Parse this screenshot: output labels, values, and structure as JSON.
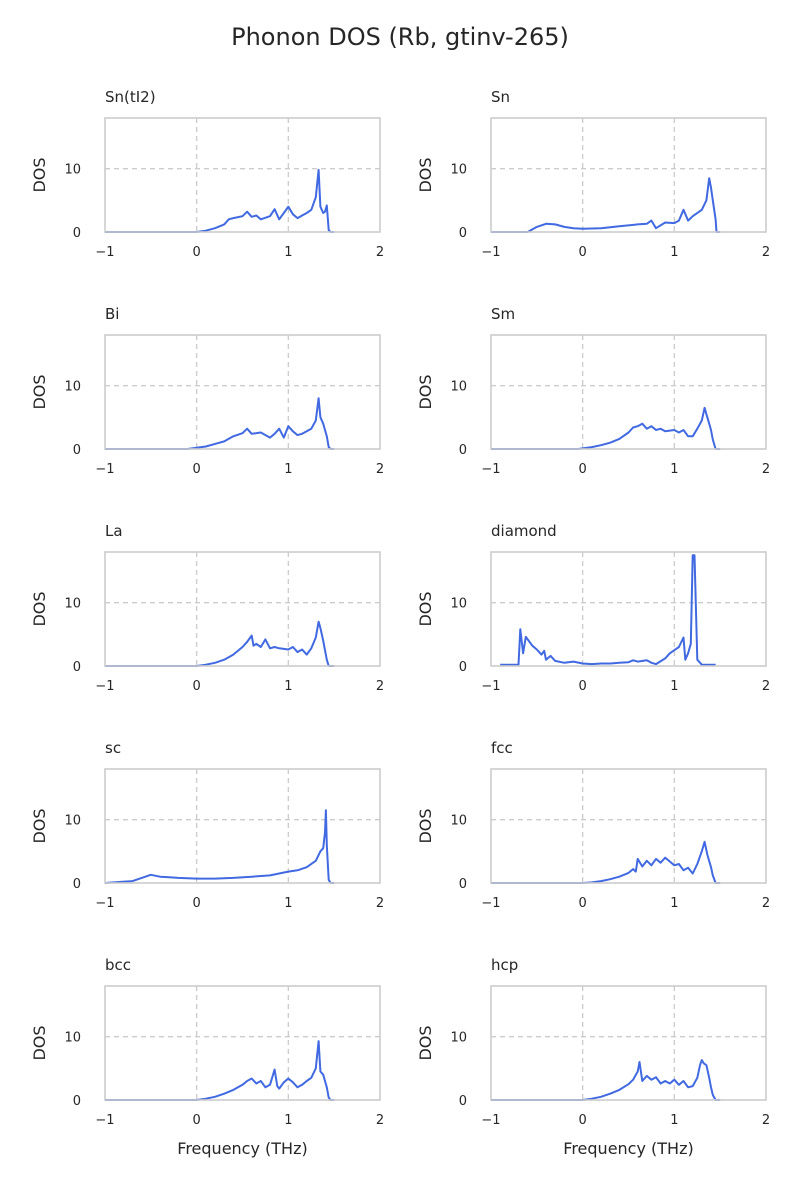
{
  "figure": {
    "title": "Phonon DOS (Rb, gtinv-265)"
  },
  "colors": {
    "line": "#4169e1",
    "axes": "#cccccc",
    "grid": "#cccccc",
    "text": "#262626"
  },
  "chart_data": [
    {
      "type": "line",
      "title": "Sn(tI2)",
      "xlabel": "",
      "ylabel": "DOS",
      "xlim": [
        -1,
        2
      ],
      "ylim": [
        0,
        18
      ],
      "xticks": [
        -1,
        0,
        1,
        2
      ],
      "yticks": [
        0,
        10
      ],
      "grid": "dashed",
      "x": [
        -1.0,
        0.0,
        0.1,
        0.2,
        0.3,
        0.35,
        0.4,
        0.5,
        0.55,
        0.6,
        0.65,
        0.7,
        0.8,
        0.85,
        0.9,
        0.95,
        1.0,
        1.05,
        1.1,
        1.15,
        1.2,
        1.25,
        1.3,
        1.33,
        1.35,
        1.38,
        1.4,
        1.42,
        1.44,
        1.46,
        1.5
      ],
      "y": [
        0,
        0,
        0.2,
        0.6,
        1.2,
        2.0,
        2.2,
        2.5,
        3.2,
        2.4,
        2.6,
        2.0,
        2.5,
        3.6,
        2.0,
        3.0,
        4.0,
        2.8,
        2.2,
        2.6,
        3.0,
        3.5,
        5.5,
        9.8,
        4.0,
        3.0,
        3.2,
        4.2,
        0.3,
        0,
        0
      ]
    },
    {
      "type": "line",
      "title": "Sn",
      "xlabel": "",
      "ylabel": "DOS",
      "xlim": [
        -1,
        2
      ],
      "ylim": [
        0,
        18
      ],
      "xticks": [
        -1,
        0,
        1,
        2
      ],
      "yticks": [
        0,
        10
      ],
      "grid": "dashed",
      "x": [
        -1.0,
        -0.6,
        -0.5,
        -0.4,
        -0.3,
        -0.2,
        -0.1,
        0.0,
        0.2,
        0.4,
        0.6,
        0.7,
        0.75,
        0.8,
        0.9,
        1.0,
        1.05,
        1.1,
        1.15,
        1.2,
        1.3,
        1.35,
        1.38,
        1.4,
        1.42,
        1.45,
        1.46,
        1.5
      ],
      "y": [
        0,
        0,
        0.8,
        1.3,
        1.2,
        0.8,
        0.6,
        0.5,
        0.6,
        0.9,
        1.2,
        1.3,
        1.8,
        0.6,
        1.5,
        1.4,
        1.8,
        3.5,
        1.8,
        2.5,
        3.5,
        5.0,
        8.5,
        7.0,
        5.0,
        2.0,
        0,
        0
      ]
    },
    {
      "type": "line",
      "title": "Bi",
      "xlabel": "",
      "ylabel": "DOS",
      "xlim": [
        -1,
        2
      ],
      "ylim": [
        0,
        18
      ],
      "xticks": [
        -1,
        0,
        1,
        2
      ],
      "yticks": [
        0,
        10
      ],
      "grid": "dashed",
      "x": [
        -1.0,
        -0.1,
        0.0,
        0.1,
        0.2,
        0.3,
        0.4,
        0.5,
        0.55,
        0.6,
        0.7,
        0.8,
        0.85,
        0.9,
        0.95,
        1.0,
        1.05,
        1.1,
        1.15,
        1.2,
        1.25,
        1.3,
        1.33,
        1.35,
        1.38,
        1.4,
        1.42,
        1.44,
        1.46,
        1.5
      ],
      "y": [
        0,
        0,
        0.2,
        0.4,
        0.8,
        1.2,
        2.0,
        2.5,
        3.2,
        2.4,
        2.6,
        1.8,
        2.4,
        3.2,
        1.8,
        3.6,
        2.8,
        2.2,
        2.4,
        2.8,
        3.2,
        4.5,
        8.0,
        5.0,
        4.0,
        3.0,
        2.0,
        0.3,
        0,
        0
      ]
    },
    {
      "type": "line",
      "title": "Sm",
      "xlabel": "",
      "ylabel": "DOS",
      "xlim": [
        -1,
        2
      ],
      "ylim": [
        0,
        18
      ],
      "xticks": [
        -1,
        0,
        1,
        2
      ],
      "yticks": [
        0,
        10
      ],
      "grid": "dashed",
      "x": [
        -1.0,
        -0.05,
        0.0,
        0.1,
        0.2,
        0.3,
        0.4,
        0.5,
        0.55,
        0.6,
        0.65,
        0.7,
        0.75,
        0.8,
        0.85,
        0.9,
        1.0,
        1.05,
        1.1,
        1.15,
        1.2,
        1.25,
        1.3,
        1.33,
        1.35,
        1.38,
        1.4,
        1.42,
        1.45,
        1.5
      ],
      "y": [
        0,
        0,
        0.1,
        0.3,
        0.6,
        1.0,
        1.6,
        2.6,
        3.4,
        3.6,
        4.0,
        3.2,
        3.6,
        3.0,
        3.2,
        2.8,
        3.0,
        2.6,
        3.0,
        2.0,
        2.0,
        3.2,
        4.5,
        6.5,
        5.5,
        4.0,
        3.0,
        1.5,
        0,
        0
      ]
    },
    {
      "type": "line",
      "title": "La",
      "xlabel": "",
      "ylabel": "DOS",
      "xlim": [
        -1,
        2
      ],
      "ylim": [
        0,
        18
      ],
      "xticks": [
        -1,
        0,
        1,
        2
      ],
      "yticks": [
        0,
        10
      ],
      "grid": "dashed",
      "x": [
        -1.0,
        0.0,
        0.1,
        0.2,
        0.3,
        0.4,
        0.5,
        0.55,
        0.6,
        0.62,
        0.65,
        0.7,
        0.75,
        0.8,
        0.85,
        0.9,
        1.0,
        1.05,
        1.1,
        1.15,
        1.2,
        1.25,
        1.3,
        1.33,
        1.35,
        1.38,
        1.4,
        1.42,
        1.44,
        1.5
      ],
      "y": [
        0,
        0,
        0.2,
        0.5,
        1.0,
        1.8,
        3.0,
        3.8,
        4.8,
        3.2,
        3.5,
        3.0,
        4.2,
        2.8,
        3.0,
        2.8,
        2.6,
        3.0,
        2.2,
        2.6,
        1.8,
        2.8,
        4.5,
        7.0,
        6.0,
        4.0,
        2.5,
        1.0,
        0,
        0
      ]
    },
    {
      "type": "line",
      "title": "diamond",
      "xlabel": "",
      "ylabel": "DOS",
      "xlim": [
        -1,
        2
      ],
      "ylim": [
        0,
        18
      ],
      "xticks": [
        -1,
        0,
        1,
        2
      ],
      "yticks": [
        0,
        10
      ],
      "grid": "dashed",
      "x": [
        -0.9,
        -0.7,
        -0.68,
        -0.65,
        -0.62,
        -0.6,
        -0.55,
        -0.5,
        -0.45,
        -0.42,
        -0.4,
        -0.35,
        -0.3,
        -0.2,
        -0.1,
        0.0,
        0.1,
        0.2,
        0.3,
        0.4,
        0.5,
        0.55,
        0.6,
        0.7,
        0.75,
        0.8,
        0.9,
        0.95,
        1.0,
        1.05,
        1.1,
        1.12,
        1.15,
        1.18,
        1.2,
        1.22,
        1.25,
        1.3,
        1.45
      ],
      "y": [
        0.2,
        0.2,
        5.8,
        2.0,
        4.6,
        4.2,
        3.2,
        2.6,
        1.8,
        2.4,
        1.0,
        1.6,
        0.8,
        0.5,
        0.7,
        0.4,
        0.3,
        0.4,
        0.4,
        0.5,
        0.6,
        0.9,
        0.7,
        0.9,
        0.5,
        0.3,
        1.2,
        2.0,
        2.5,
        3.0,
        4.5,
        1.0,
        2.0,
        3.5,
        17.5,
        17.5,
        1.0,
        0.2,
        0.2
      ]
    },
    {
      "type": "line",
      "title": "sc",
      "xlabel": "",
      "ylabel": "DOS",
      "xlim": [
        -1,
        2
      ],
      "ylim": [
        0,
        18
      ],
      "xticks": [
        -1,
        0,
        1,
        2
      ],
      "yticks": [
        0,
        10
      ],
      "grid": "dashed",
      "x": [
        -1.0,
        -0.7,
        -0.6,
        -0.5,
        -0.4,
        -0.3,
        -0.2,
        0.0,
        0.2,
        0.4,
        0.6,
        0.8,
        1.0,
        1.1,
        1.2,
        1.3,
        1.35,
        1.38,
        1.4,
        1.41,
        1.42,
        1.44,
        1.46,
        1.5
      ],
      "y": [
        0,
        0.3,
        0.8,
        1.3,
        1.0,
        0.9,
        0.8,
        0.7,
        0.7,
        0.8,
        1.0,
        1.2,
        1.8,
        2.0,
        2.5,
        3.5,
        5.0,
        5.5,
        8.0,
        11.5,
        6.0,
        0.5,
        0,
        0
      ]
    },
    {
      "type": "line",
      "title": "fcc",
      "xlabel": "",
      "ylabel": "DOS",
      "xlim": [
        -1,
        2
      ],
      "ylim": [
        0,
        18
      ],
      "xticks": [
        -1,
        0,
        1,
        2
      ],
      "yticks": [
        0,
        10
      ],
      "grid": "dashed",
      "x": [
        -1.0,
        0.0,
        0.1,
        0.2,
        0.3,
        0.4,
        0.5,
        0.55,
        0.58,
        0.6,
        0.65,
        0.7,
        0.75,
        0.8,
        0.85,
        0.9,
        0.95,
        1.0,
        1.05,
        1.1,
        1.15,
        1.2,
        1.25,
        1.3,
        1.33,
        1.36,
        1.4,
        1.42,
        1.45,
        1.5
      ],
      "y": [
        0,
        0,
        0.1,
        0.3,
        0.6,
        1.0,
        1.6,
        2.2,
        1.8,
        3.8,
        2.6,
        3.5,
        2.8,
        3.8,
        3.2,
        4.0,
        3.4,
        2.8,
        3.0,
        2.0,
        2.4,
        1.5,
        3.0,
        5.0,
        6.5,
        4.5,
        2.5,
        1.2,
        0,
        0
      ]
    },
    {
      "type": "line",
      "title": "bcc",
      "xlabel": "Frequency (THz)",
      "ylabel": "DOS",
      "xlim": [
        -1,
        2
      ],
      "ylim": [
        0,
        18
      ],
      "xticks": [
        -1,
        0,
        1,
        2
      ],
      "yticks": [
        0,
        10
      ],
      "grid": "dashed",
      "x": [
        -1.0,
        0.0,
        0.1,
        0.2,
        0.3,
        0.4,
        0.5,
        0.55,
        0.6,
        0.65,
        0.7,
        0.75,
        0.8,
        0.85,
        0.88,
        0.9,
        0.95,
        1.0,
        1.05,
        1.1,
        1.15,
        1.2,
        1.25,
        1.3,
        1.33,
        1.35,
        1.38,
        1.4,
        1.42,
        1.44,
        1.46,
        1.5
      ],
      "y": [
        0,
        0,
        0.2,
        0.5,
        1.0,
        1.6,
        2.4,
        3.0,
        3.4,
        2.6,
        3.0,
        2.0,
        2.4,
        4.8,
        2.2,
        1.8,
        2.8,
        3.4,
        2.8,
        2.0,
        2.4,
        3.0,
        3.5,
        5.0,
        9.3,
        4.5,
        4.0,
        3.0,
        2.0,
        0.4,
        0,
        0
      ]
    },
    {
      "type": "line",
      "title": "hcp",
      "xlabel": "Frequency (THz)",
      "ylabel": "DOS",
      "xlim": [
        -1,
        2
      ],
      "ylim": [
        0,
        18
      ],
      "xticks": [
        -1,
        0,
        1,
        2
      ],
      "yticks": [
        0,
        10
      ],
      "grid": "dashed",
      "x": [
        -1.0,
        0.0,
        0.1,
        0.2,
        0.3,
        0.4,
        0.5,
        0.55,
        0.6,
        0.62,
        0.65,
        0.7,
        0.75,
        0.8,
        0.85,
        0.9,
        0.95,
        1.0,
        1.05,
        1.1,
        1.15,
        1.2,
        1.25,
        1.28,
        1.3,
        1.32,
        1.35,
        1.38,
        1.4,
        1.42,
        1.45,
        1.5
      ],
      "y": [
        0,
        0,
        0.2,
        0.5,
        1.0,
        1.6,
        2.5,
        3.2,
        4.5,
        6.0,
        3.0,
        3.8,
        3.2,
        3.6,
        2.6,
        3.0,
        2.6,
        3.2,
        2.4,
        3.0,
        2.0,
        2.2,
        3.5,
        5.5,
        6.3,
        5.8,
        5.5,
        3.5,
        2.0,
        0.8,
        0,
        0
      ]
    }
  ]
}
